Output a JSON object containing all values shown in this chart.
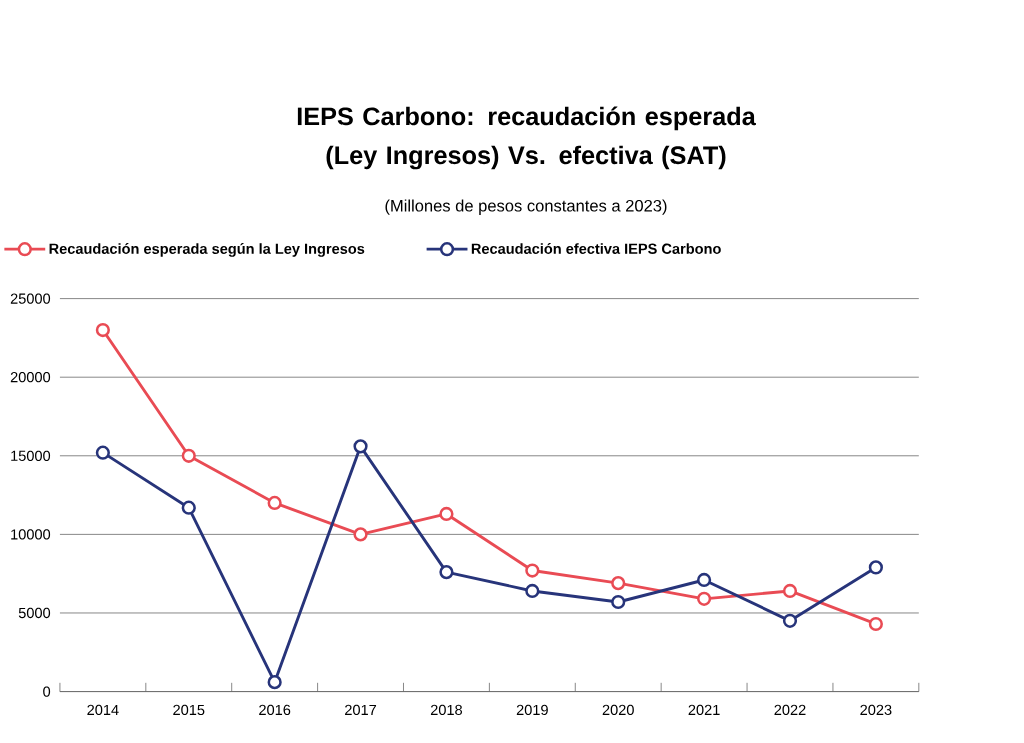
{
  "chart_data": {
    "type": "line",
    "title": "IEPS Carbono: recaudación esperada (Ley Ingresos) Vs. efectiva (SAT)",
    "subtitle": "(Millones de pesos constantes a 2023)",
    "categories": [
      "2014",
      "2015",
      "2016",
      "2017",
      "2018",
      "2019",
      "2020",
      "2021",
      "2022",
      "2023"
    ],
    "series": [
      {
        "name": "Recaudación esperada según la Ley Ingresos",
        "color": "#e94b54",
        "values": [
          23000,
          15000,
          12000,
          10000,
          11300,
          7700,
          6900,
          5900,
          6400,
          4300
        ]
      },
      {
        "name": "Recaudación efectiva IEPS Carbono",
        "color": "#27347a",
        "values": [
          15200,
          11700,
          600,
          15600,
          7600,
          6400,
          5700,
          7100,
          4500,
          7900
        ]
      }
    ],
    "ylim": [
      0,
      25000
    ],
    "yticks": [
      0,
      5000,
      10000,
      15000,
      20000,
      25000
    ],
    "grid": "y",
    "legend": "top",
    "marker": "circle",
    "line_style": "solid"
  }
}
